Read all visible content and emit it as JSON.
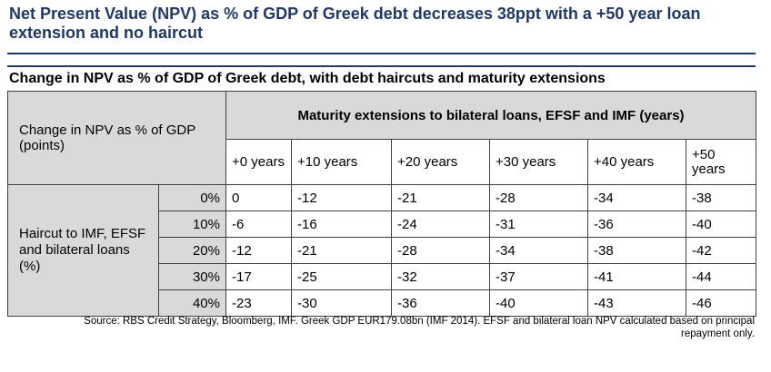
{
  "title": "Net Present Value (NPV) as % of GDP of Greek debt decreases 38ppt with a +50 year loan extension and no haircut",
  "subtitle": "Change in NPV as % of GDP of Greek debt, with debt haircuts and maturity extensions",
  "chart_data": {
    "type": "table",
    "title": "Change in NPV as % of GDP of Greek debt, with debt haircuts and maturity extensions",
    "corner_label": "Change in NPV as % of GDP (points)",
    "column_group_label": "Maturity extensions to bilateral loans, EFSF and IMF (years)",
    "row_group_label": "Haircut to IMF, EFSF and bilateral loans (%)",
    "columns": [
      "+0 years",
      "+10 years",
      "+20 years",
      "+30 years",
      "+40 years",
      "+50 years"
    ],
    "rows": [
      "0%",
      "10%",
      "20%",
      "30%",
      "40%"
    ],
    "values": [
      [
        0,
        -12,
        -21,
        -28,
        -34,
        -38
      ],
      [
        -6,
        -16,
        -24,
        -31,
        -36,
        -40
      ],
      [
        -12,
        -21,
        -28,
        -34,
        -38,
        -42
      ],
      [
        -17,
        -25,
        -32,
        -37,
        -41,
        -44
      ],
      [
        -23,
        -30,
        -36,
        -40,
        -43,
        -46
      ]
    ]
  },
  "source": "Source: RBS Credit Strategy, Bloomberg, IMF. Greek GDP EUR179.08bn (IMF 2014). EFSF and bilateral loan NPV calculated based on principal repayment only."
}
